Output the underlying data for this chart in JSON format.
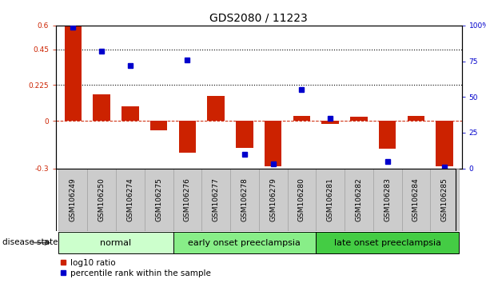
{
  "title": "GDS2080 / 11223",
  "samples": [
    "GSM106249",
    "GSM106250",
    "GSM106274",
    "GSM106275",
    "GSM106276",
    "GSM106277",
    "GSM106278",
    "GSM106279",
    "GSM106280",
    "GSM106281",
    "GSM106282",
    "GSM106283",
    "GSM106284",
    "GSM106285"
  ],
  "log10_ratio": [
    0.595,
    0.165,
    0.09,
    -0.06,
    -0.2,
    0.155,
    -0.17,
    -0.285,
    0.03,
    -0.02,
    0.025,
    -0.175,
    0.03,
    -0.285
  ],
  "percentile_rank": [
    99,
    82,
    72,
    null,
    76,
    null,
    10,
    3,
    55,
    35,
    null,
    5,
    null,
    1
  ],
  "groups": [
    {
      "label": "normal",
      "start": 0,
      "end": 3,
      "color": "#ccffcc"
    },
    {
      "label": "early onset preeclampsia",
      "start": 4,
      "end": 8,
      "color": "#88ee88"
    },
    {
      "label": "late onset preeclampsia",
      "start": 9,
      "end": 13,
      "color": "#44cc44"
    }
  ],
  "left_ylim": [
    -0.3,
    0.6
  ],
  "right_ylim": [
    0,
    100
  ],
  "left_yticks": [
    -0.3,
    0,
    0.225,
    0.45,
    0.6
  ],
  "right_yticks": [
    0,
    25,
    50,
    75,
    100
  ],
  "hlines": [
    0.225,
    0.45
  ],
  "bar_color": "#cc2200",
  "dot_color": "#0000cc",
  "bg_color": "#ffffff",
  "tick_bg_color": "#cccccc",
  "group_border_color": "#000000",
  "title_fontsize": 10,
  "tick_fontsize": 6.5,
  "group_fontsize": 8
}
